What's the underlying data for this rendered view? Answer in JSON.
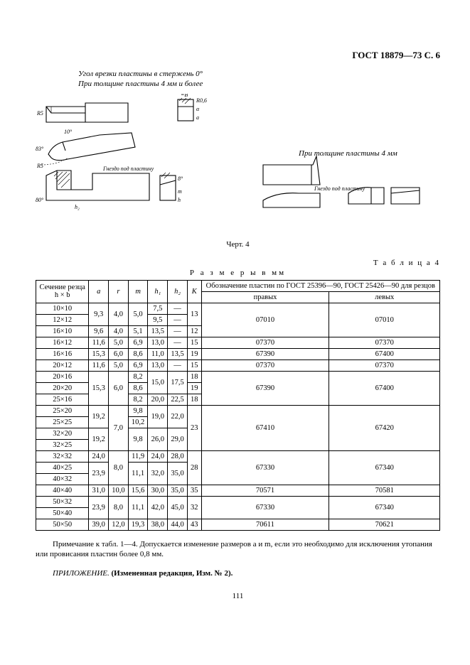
{
  "header": "ГОСТ 18879—73 С. 6",
  "caption1": "Угол врезки пластины в стержень 0°",
  "caption2": "При толщине пластины 4 мм и более",
  "side_caption": "При толщине пластины 4 мм",
  "gnezdo": "Гнездо под пластину",
  "gnezdo2": "Гнездо под пластину",
  "dim_B": "=B",
  "dim_R5": "R5",
  "dim_10": "10°",
  "dim_83": "83°",
  "dim_80": "80°",
  "dim_h2": "h₂",
  "dim_R06": "R0,6",
  "dim_a": "a",
  "dim_alpha": "α",
  "dim_8p": "8°",
  "dim_m": "m",
  "dim_hp": "h",
  "fig": "Черт. 4",
  "table_label": "Т а б л и ц а 4",
  "table_title": "Р а з м е р ы в мм",
  "cols": {
    "section": "Сечение резца",
    "hb": "h × b",
    "a": "a",
    "r": "r",
    "m": "m",
    "h1": "h₁",
    "h2": "h₂",
    "K": "K",
    "designation": "Обозначение пластин по ГОСТ 25396—90, ГОСТ 25426—90 для резцов",
    "right": "правых",
    "left": "левых"
  },
  "rows": [
    {
      "sec": "10×10",
      "a": "9,3",
      "a_rs": 2,
      "r": "4,0",
      "r_rs": 2,
      "m": "5,0",
      "m_rs": 2,
      "h1": "7,5",
      "h2": "—",
      "K": "13",
      "K_rs": 2,
      "pr": "07010",
      "pr_rs": 3,
      "lv": "07010",
      "lv_rs": 3
    },
    {
      "sec": "12×12",
      "h1": "9,5",
      "h2": "—"
    },
    {
      "sec": "16×10",
      "a": "9,6",
      "r": "4,0",
      "m": "5,1",
      "h1": "13,5",
      "h2": "—",
      "K": "12"
    },
    {
      "sec": "16×12",
      "a": "11,6",
      "r": "5,0",
      "m": "6,9",
      "h1": "13,0",
      "h2": "—",
      "K": "15",
      "pr": "07370",
      "lv": "07370"
    },
    {
      "sec": "16×16",
      "a": "15,3",
      "r": "6,0",
      "m": "8,6",
      "h1": "11,0",
      "h2": "13,5",
      "K": "19",
      "pr": "67390",
      "lv": "67400"
    },
    {
      "sec": "20×12",
      "a": "11,6",
      "r": "5,0",
      "m": "6,9",
      "h1": "13,0",
      "h2": "—",
      "K": "15",
      "pr": "07370",
      "lv": "07370"
    },
    {
      "sec": "20×16",
      "a": "15,3",
      "a_rs": 3,
      "r": "6,0",
      "r_rs": 3,
      "m": "8,2",
      "h1": "15,0",
      "h1_rs": 2,
      "h2": "17,5",
      "h2_rs": 2,
      "K": "18",
      "pr": "67390",
      "pr_rs": 3,
      "lv": "67400",
      "lv_rs": 3
    },
    {
      "sec": "20×20",
      "m": "8,6",
      "K": "19"
    },
    {
      "sec": "25×16",
      "m": "8,2",
      "h1": "20,0",
      "h2": "22,5",
      "K": "18"
    },
    {
      "sec": "25×20",
      "a": "19,2",
      "a_rs": 2,
      "r": "7,0",
      "r_rs": 4,
      "m": "9,8",
      "h1": "19,0",
      "h1_rs": 2,
      "h2": "22,0",
      "h2_rs": 2,
      "K": "23",
      "K_rs": 4,
      "pr": "67410",
      "pr_rs": 4,
      "lv": "67420",
      "lv_rs": 4
    },
    {
      "sec": "25×25",
      "m": "10,2"
    },
    {
      "sec": "32×20",
      "a": "19,2",
      "a_rs": 2,
      "m": "9,8",
      "m_rs": 2,
      "h1": "26,0",
      "h1_rs": 2,
      "h2": "29,0",
      "h2_rs": 2
    },
    {
      "sec": "32×25"
    },
    {
      "sec": "32×32",
      "a": "24,0",
      "r": "8,0",
      "r_rs": 3,
      "m": "11,9",
      "h1": "24,0",
      "h2": "28,0",
      "K": "28",
      "K_rs": 3,
      "pr": "67330",
      "pr_rs": 3,
      "lv": "67340",
      "lv_rs": 3
    },
    {
      "sec": "40×25",
      "a": "23,9",
      "a_rs": 2,
      "m": "11,1",
      "m_rs": 2,
      "h1": "32,0",
      "h1_rs": 2,
      "h2": "35,0",
      "h2_rs": 2
    },
    {
      "sec": "40×32"
    },
    {
      "sec": "40×40",
      "a": "31,0",
      "r": "10,0",
      "m": "15,6",
      "h1": "30,0",
      "h2": "35,0",
      "K": "35",
      "pr": "70571",
      "lv": "70581"
    },
    {
      "sec": "50×32",
      "a": "23,9",
      "a_rs": 2,
      "r": "8,0",
      "r_rs": 2,
      "m": "11,1",
      "m_rs": 2,
      "h1": "42,0",
      "h1_rs": 2,
      "h2": "45,0",
      "h2_rs": 2,
      "K": "32",
      "K_rs": 2,
      "pr": "67330",
      "pr_rs": 2,
      "lv": "67340",
      "lv_rs": 2
    },
    {
      "sec": "50×40"
    },
    {
      "sec": "50×50",
      "a": "39,0",
      "r": "12,0",
      "m": "19,3",
      "h1": "38,0",
      "h2": "44,0",
      "K": "43",
      "pr": "70611",
      "lv": "70621"
    }
  ],
  "note": "Примечание к табл. 1—4. Допускается изменение размеров  a  и m, если это необходимо для исключения утопания или провисания пластин более 0,8 мм.",
  "appendix_it": "ПРИЛОЖЕНИЕ. ",
  "appendix_b": "(Измененная редакция, Изм. № 2).",
  "page_num": "111"
}
